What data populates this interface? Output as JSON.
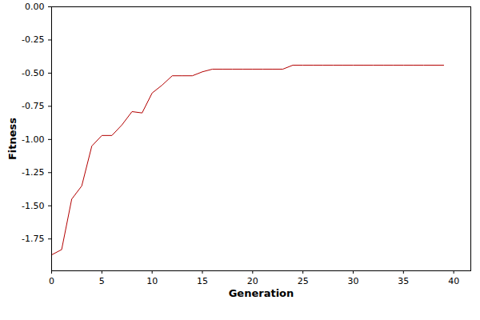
{
  "chart_data": {
    "type": "line",
    "x_label": "Generation",
    "y_label": "Fitness",
    "x": [
      0,
      1,
      2,
      3,
      4,
      5,
      6,
      7,
      8,
      9,
      10,
      11,
      12,
      13,
      14,
      15,
      16,
      17,
      18,
      19,
      20,
      21,
      22,
      23,
      24,
      25,
      26,
      27,
      28,
      29,
      30,
      31,
      32,
      33,
      34,
      35,
      36,
      37,
      38,
      39
    ],
    "values": [
      -1.87,
      -1.83,
      -1.45,
      -1.35,
      -1.05,
      -0.97,
      -0.97,
      -0.89,
      -0.79,
      -0.8,
      -0.65,
      -0.59,
      -0.52,
      -0.52,
      -0.52,
      -0.49,
      -0.47,
      -0.47,
      -0.47,
      -0.47,
      -0.47,
      -0.47,
      -0.47,
      -0.47,
      -0.44,
      -0.44,
      -0.44,
      -0.44,
      -0.44,
      -0.44,
      -0.44,
      -0.44,
      -0.44,
      -0.44,
      -0.44,
      -0.44,
      -0.44,
      -0.44,
      -0.44,
      -0.44
    ],
    "color": "#b30000",
    "xlim": [
      0,
      41.7
    ],
    "xticks": [
      0,
      5,
      10,
      15,
      20,
      25,
      30,
      35,
      40
    ],
    "ylim": [
      -1.99,
      0
    ],
    "yticks": [
      {
        "value": 0,
        "label": "0.00"
      },
      {
        "value": -0.25,
        "label": "-0.25"
      },
      {
        "value": -0.5,
        "label": "-0.50"
      },
      {
        "value": -0.75,
        "label": "-0.75"
      },
      {
        "value": -1,
        "label": "-1.00"
      },
      {
        "value": -1.25,
        "label": "-1.25"
      },
      {
        "value": -1.5,
        "label": "-1.50"
      },
      {
        "value": -1.75,
        "label": "-1.75"
      }
    ],
    "grid": false
  }
}
